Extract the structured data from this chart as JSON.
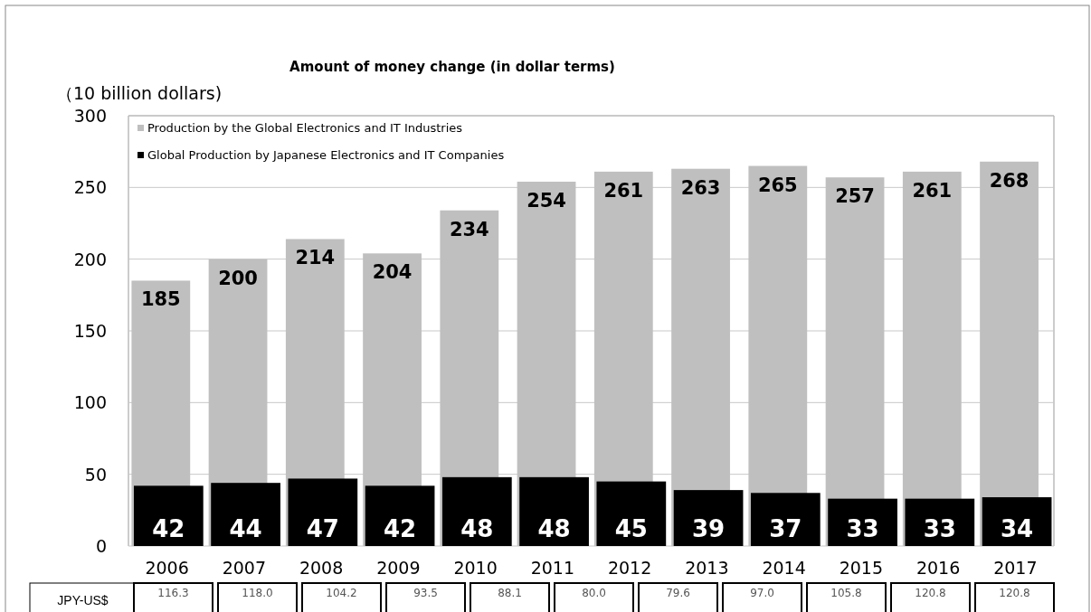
{
  "chart_data": {
    "type": "bar",
    "title": "Amount of money change (in dollar  terms)",
    "ylabel": "（10 billion dollars)",
    "categories": [
      "2006",
      "2007",
      "2008",
      "2009",
      "2010",
      "2011",
      "2012",
      "2013",
      "2014",
      "2015",
      "2016",
      "2017"
    ],
    "series": [
      {
        "name": "Production by the Global Electronics and IT Industries",
        "color": "#bfbfbf",
        "values": [
          185,
          200,
          214,
          204,
          234,
          254,
          261,
          263,
          265,
          257,
          261,
          268
        ]
      },
      {
        "name": "Global Production by Japanese Electronics and IT Companies",
        "color": "#000000",
        "values": [
          42,
          44,
          47,
          42,
          48,
          48,
          45,
          39,
          37,
          33,
          33,
          34
        ]
      }
    ],
    "ylim": [
      0,
      300
    ],
    "yticks": [
      0,
      50,
      100,
      150,
      200,
      250,
      300
    ],
    "grid": "y",
    "legend": "top left",
    "data_labels": true,
    "annotations": [
      "JPY-US$",
      "116.3",
      "118.0",
      "104.2",
      "93.5",
      "88.1",
      "80.0",
      "79.6",
      "97.0",
      "105.8",
      "120.8",
      "120.8"
    ]
  }
}
